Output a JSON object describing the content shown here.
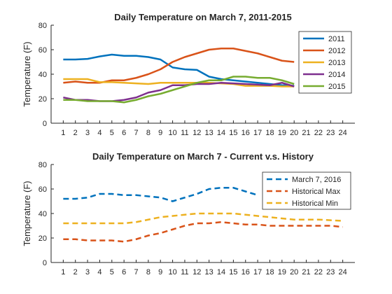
{
  "chart_data": [
    {
      "type": "line",
      "title": "Daily Temperature on March 7, 2011-2015",
      "xlabel": "",
      "ylabel": "Temperature (F)",
      "x": [
        1,
        2,
        3,
        4,
        5,
        6,
        7,
        8,
        9,
        10,
        11,
        12,
        13,
        14,
        15,
        16,
        17,
        18,
        19,
        20,
        21,
        22,
        23,
        24
      ],
      "xlim": [
        0,
        25
      ],
      "ylim": [
        0,
        80
      ],
      "yticks": [
        0,
        20,
        40,
        60,
        80
      ],
      "legend_position": "top-right",
      "series": [
        {
          "name": "2011",
          "color": "#0072BD",
          "style": "solid",
          "values": [
            52,
            52,
            52.5,
            54.5,
            56,
            55,
            55,
            54,
            52,
            45.5,
            44,
            43.5,
            38,
            36,
            35,
            34,
            33,
            32,
            31,
            30.5,
            null,
            null,
            null,
            null
          ]
        },
        {
          "name": "2012",
          "color": "#D95319",
          "style": "solid",
          "values": [
            33,
            34,
            33,
            33,
            35,
            35,
            37,
            40,
            44,
            50,
            54,
            57,
            60,
            61,
            61,
            59,
            57,
            54,
            51,
            50,
            null,
            null,
            null,
            null
          ]
        },
        {
          "name": "2013",
          "color": "#EDB120",
          "style": "solid",
          "values": [
            36,
            36,
            36,
            33.5,
            33.5,
            33,
            32.5,
            32,
            33,
            33,
            33,
            33,
            33,
            32.5,
            32,
            30.5,
            30.5,
            30.5,
            30,
            30,
            null,
            null,
            null,
            null
          ]
        },
        {
          "name": "2014",
          "color": "#7E2F8E",
          "style": "solid",
          "values": [
            21,
            19,
            19,
            18,
            18,
            19,
            21,
            25,
            27,
            31,
            31,
            32,
            32,
            33,
            32.5,
            32,
            31.5,
            31,
            33,
            30,
            null,
            null,
            null,
            null
          ]
        },
        {
          "name": "2015",
          "color": "#77AC30",
          "style": "solid",
          "values": [
            19,
            19,
            18,
            18,
            18,
            17,
            19,
            22,
            24,
            27,
            30,
            33,
            35,
            35,
            38,
            38,
            37,
            37,
            35,
            32,
            null,
            null,
            null,
            null
          ]
        }
      ]
    },
    {
      "type": "line",
      "title": "Daily Temperature on March 7 - Current v.s. History",
      "xlabel": "",
      "ylabel": "Temperature (F)",
      "x": [
        1,
        2,
        3,
        4,
        5,
        6,
        7,
        8,
        9,
        10,
        11,
        12,
        13,
        14,
        15,
        16,
        17,
        18,
        19,
        20,
        21,
        22,
        23,
        24
      ],
      "xlim": [
        0,
        25
      ],
      "ylim": [
        0,
        80
      ],
      "yticks": [
        0,
        20,
        40,
        60,
        80
      ],
      "legend_position": "top-right",
      "series": [
        {
          "name": "March 7, 2016",
          "color": "#0072BD",
          "style": "dashed",
          "values": [
            52,
            52,
            53,
            56,
            56,
            55,
            55,
            54,
            53,
            50,
            53,
            56,
            60,
            61,
            61,
            58,
            55,
            null,
            null,
            null,
            null,
            null,
            null,
            null
          ]
        },
        {
          "name": "Historical Max",
          "color": "#D95319",
          "style": "dashed",
          "values": [
            19,
            19,
            18,
            18,
            18,
            17,
            19,
            22,
            24,
            27,
            30,
            32,
            32,
            33,
            32,
            31,
            31,
            30,
            30,
            30,
            30,
            30,
            30,
            29
          ]
        },
        {
          "name": "Historical Min",
          "color": "#EDB120",
          "style": "dashed",
          "values": [
            32,
            32,
            32,
            32,
            32,
            32,
            33,
            35,
            37,
            38,
            39,
            40,
            40,
            40,
            40,
            39,
            38,
            37,
            36,
            35,
            35,
            35,
            34.5,
            34
          ]
        }
      ]
    }
  ]
}
